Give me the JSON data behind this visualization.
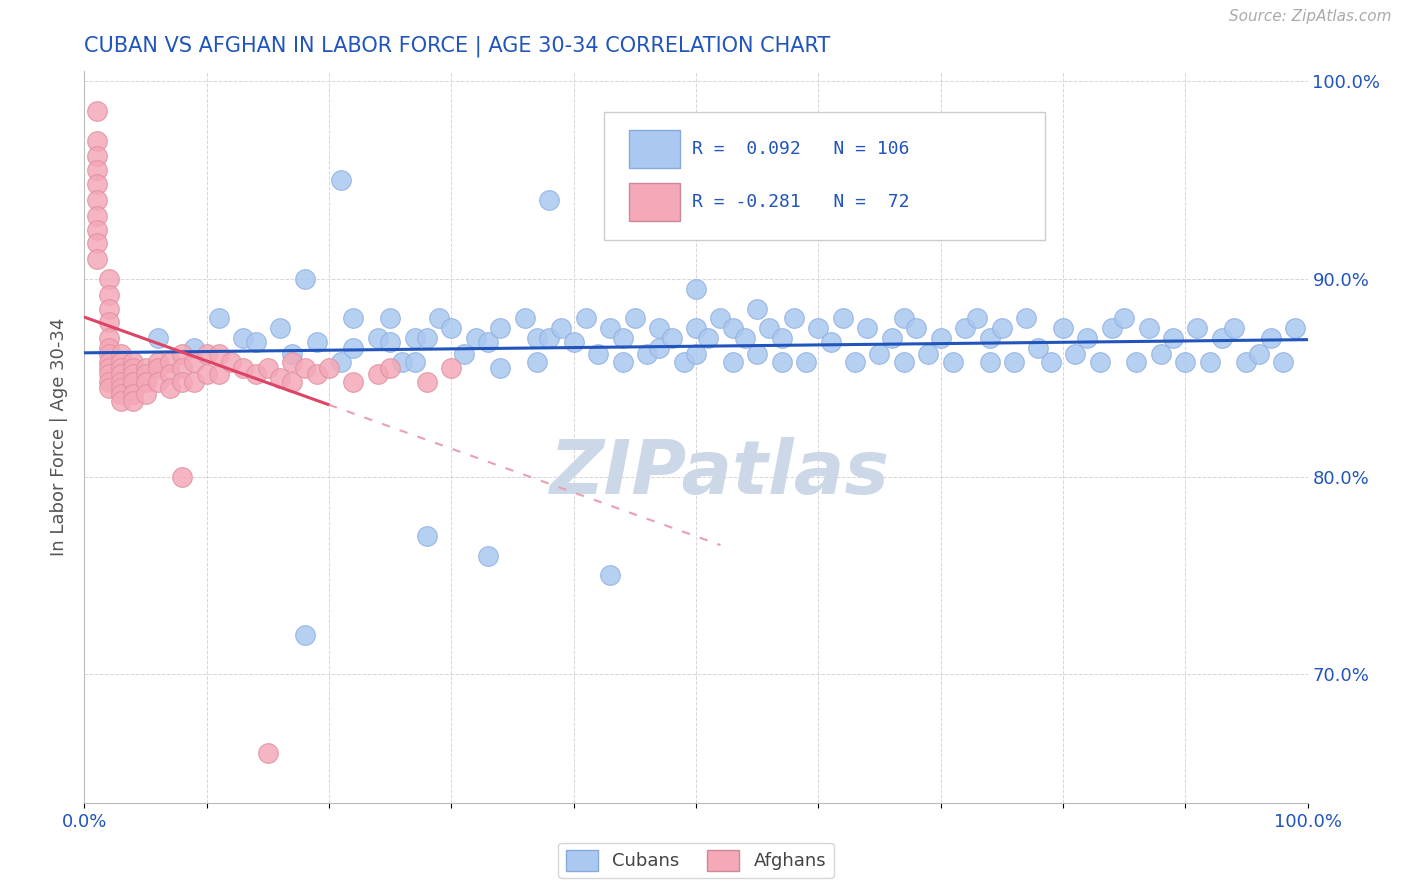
{
  "title": "CUBAN VS AFGHAN IN LABOR FORCE | AGE 30-34 CORRELATION CHART",
  "source_text": "Source: ZipAtlas.com",
  "ylabel": "In Labor Force | Age 30-34",
  "xlim": [
    0.0,
    1.0
  ],
  "ylim": [
    0.635,
    1.005
  ],
  "y_ticks": [
    0.7,
    0.8,
    0.9,
    1.0
  ],
  "y_tick_labels": [
    "70.0%",
    "80.0%",
    "90.0%",
    "100.0%"
  ],
  "cubans_R": 0.092,
  "cubans_N": 106,
  "afghans_R": -0.281,
  "afghans_N": 72,
  "cubans_color": "#aac8f0",
  "afghans_color": "#f4a8b8",
  "cubans_line_color": "#2255bb",
  "afghans_line_color": "#dd4466",
  "afghans_line_dashed_color": "#e8a0b0",
  "background_color": "#ffffff",
  "watermark_text": "ZIPatlas",
  "watermark_color": "#ccd8e8",
  "legend_color": "#2255bb",
  "title_color": "#2255bb",
  "tick_color": "#2255bb",
  "ylabel_color": "#555555",
  "source_color": "#aaaaaa",
  "grid_color": "#cccccc",
  "cubans_x": [
    0.06,
    0.09,
    0.11,
    0.13,
    0.14,
    0.16,
    0.17,
    0.18,
    0.19,
    0.21,
    0.22,
    0.22,
    0.24,
    0.25,
    0.25,
    0.26,
    0.27,
    0.27,
    0.28,
    0.29,
    0.3,
    0.31,
    0.32,
    0.33,
    0.34,
    0.34,
    0.36,
    0.37,
    0.37,
    0.38,
    0.39,
    0.4,
    0.41,
    0.42,
    0.43,
    0.44,
    0.44,
    0.45,
    0.46,
    0.47,
    0.47,
    0.48,
    0.49,
    0.5,
    0.5,
    0.51,
    0.52,
    0.53,
    0.53,
    0.54,
    0.55,
    0.56,
    0.57,
    0.57,
    0.58,
    0.59,
    0.6,
    0.61,
    0.62,
    0.63,
    0.64,
    0.65,
    0.66,
    0.67,
    0.67,
    0.68,
    0.69,
    0.7,
    0.71,
    0.72,
    0.73,
    0.74,
    0.74,
    0.75,
    0.76,
    0.77,
    0.78,
    0.79,
    0.8,
    0.81,
    0.82,
    0.83,
    0.84,
    0.85,
    0.86,
    0.87,
    0.88,
    0.89,
    0.9,
    0.91,
    0.92,
    0.93,
    0.94,
    0.95,
    0.96,
    0.97,
    0.98,
    0.99,
    0.21,
    0.38,
    0.5,
    0.55,
    0.43,
    0.28,
    0.18,
    0.33
  ],
  "cubans_y": [
    0.87,
    0.865,
    0.88,
    0.87,
    0.868,
    0.875,
    0.862,
    0.9,
    0.868,
    0.858,
    0.88,
    0.865,
    0.87,
    0.868,
    0.88,
    0.858,
    0.87,
    0.858,
    0.87,
    0.88,
    0.875,
    0.862,
    0.87,
    0.868,
    0.875,
    0.855,
    0.88,
    0.87,
    0.858,
    0.87,
    0.875,
    0.868,
    0.88,
    0.862,
    0.875,
    0.87,
    0.858,
    0.88,
    0.862,
    0.875,
    0.865,
    0.87,
    0.858,
    0.875,
    0.862,
    0.87,
    0.88,
    0.858,
    0.875,
    0.87,
    0.862,
    0.875,
    0.858,
    0.87,
    0.88,
    0.858,
    0.875,
    0.868,
    0.88,
    0.858,
    0.875,
    0.862,
    0.87,
    0.858,
    0.88,
    0.875,
    0.862,
    0.87,
    0.858,
    0.875,
    0.88,
    0.858,
    0.87,
    0.875,
    0.858,
    0.88,
    0.865,
    0.858,
    0.875,
    0.862,
    0.87,
    0.858,
    0.875,
    0.88,
    0.858,
    0.875,
    0.862,
    0.87,
    0.858,
    0.875,
    0.858,
    0.87,
    0.875,
    0.858,
    0.862,
    0.87,
    0.858,
    0.875,
    0.95,
    0.94,
    0.895,
    0.885,
    0.75,
    0.77,
    0.72,
    0.76
  ],
  "afghans_x": [
    0.01,
    0.01,
    0.01,
    0.01,
    0.01,
    0.01,
    0.01,
    0.01,
    0.01,
    0.01,
    0.02,
    0.02,
    0.02,
    0.02,
    0.02,
    0.02,
    0.02,
    0.02,
    0.02,
    0.02,
    0.02,
    0.02,
    0.03,
    0.03,
    0.03,
    0.03,
    0.03,
    0.03,
    0.03,
    0.03,
    0.04,
    0.04,
    0.04,
    0.04,
    0.04,
    0.04,
    0.05,
    0.05,
    0.05,
    0.05,
    0.06,
    0.06,
    0.06,
    0.07,
    0.07,
    0.07,
    0.08,
    0.08,
    0.08,
    0.09,
    0.09,
    0.1,
    0.1,
    0.11,
    0.11,
    0.12,
    0.13,
    0.14,
    0.15,
    0.16,
    0.17,
    0.17,
    0.18,
    0.19,
    0.2,
    0.22,
    0.24,
    0.25,
    0.28,
    0.3,
    0.08,
    0.15
  ],
  "afghans_y": [
    0.985,
    0.97,
    0.962,
    0.955,
    0.948,
    0.94,
    0.932,
    0.925,
    0.918,
    0.91,
    0.9,
    0.892,
    0.885,
    0.878,
    0.87,
    0.865,
    0.862,
    0.858,
    0.855,
    0.852,
    0.848,
    0.845,
    0.862,
    0.858,
    0.855,
    0.852,
    0.848,
    0.845,
    0.842,
    0.838,
    0.858,
    0.855,
    0.852,
    0.848,
    0.842,
    0.838,
    0.855,
    0.852,
    0.848,
    0.842,
    0.858,
    0.855,
    0.848,
    0.858,
    0.852,
    0.845,
    0.862,
    0.855,
    0.848,
    0.858,
    0.848,
    0.862,
    0.852,
    0.862,
    0.852,
    0.858,
    0.855,
    0.852,
    0.855,
    0.85,
    0.858,
    0.848,
    0.855,
    0.852,
    0.855,
    0.848,
    0.852,
    0.855,
    0.848,
    0.855,
    0.8,
    0.66
  ]
}
